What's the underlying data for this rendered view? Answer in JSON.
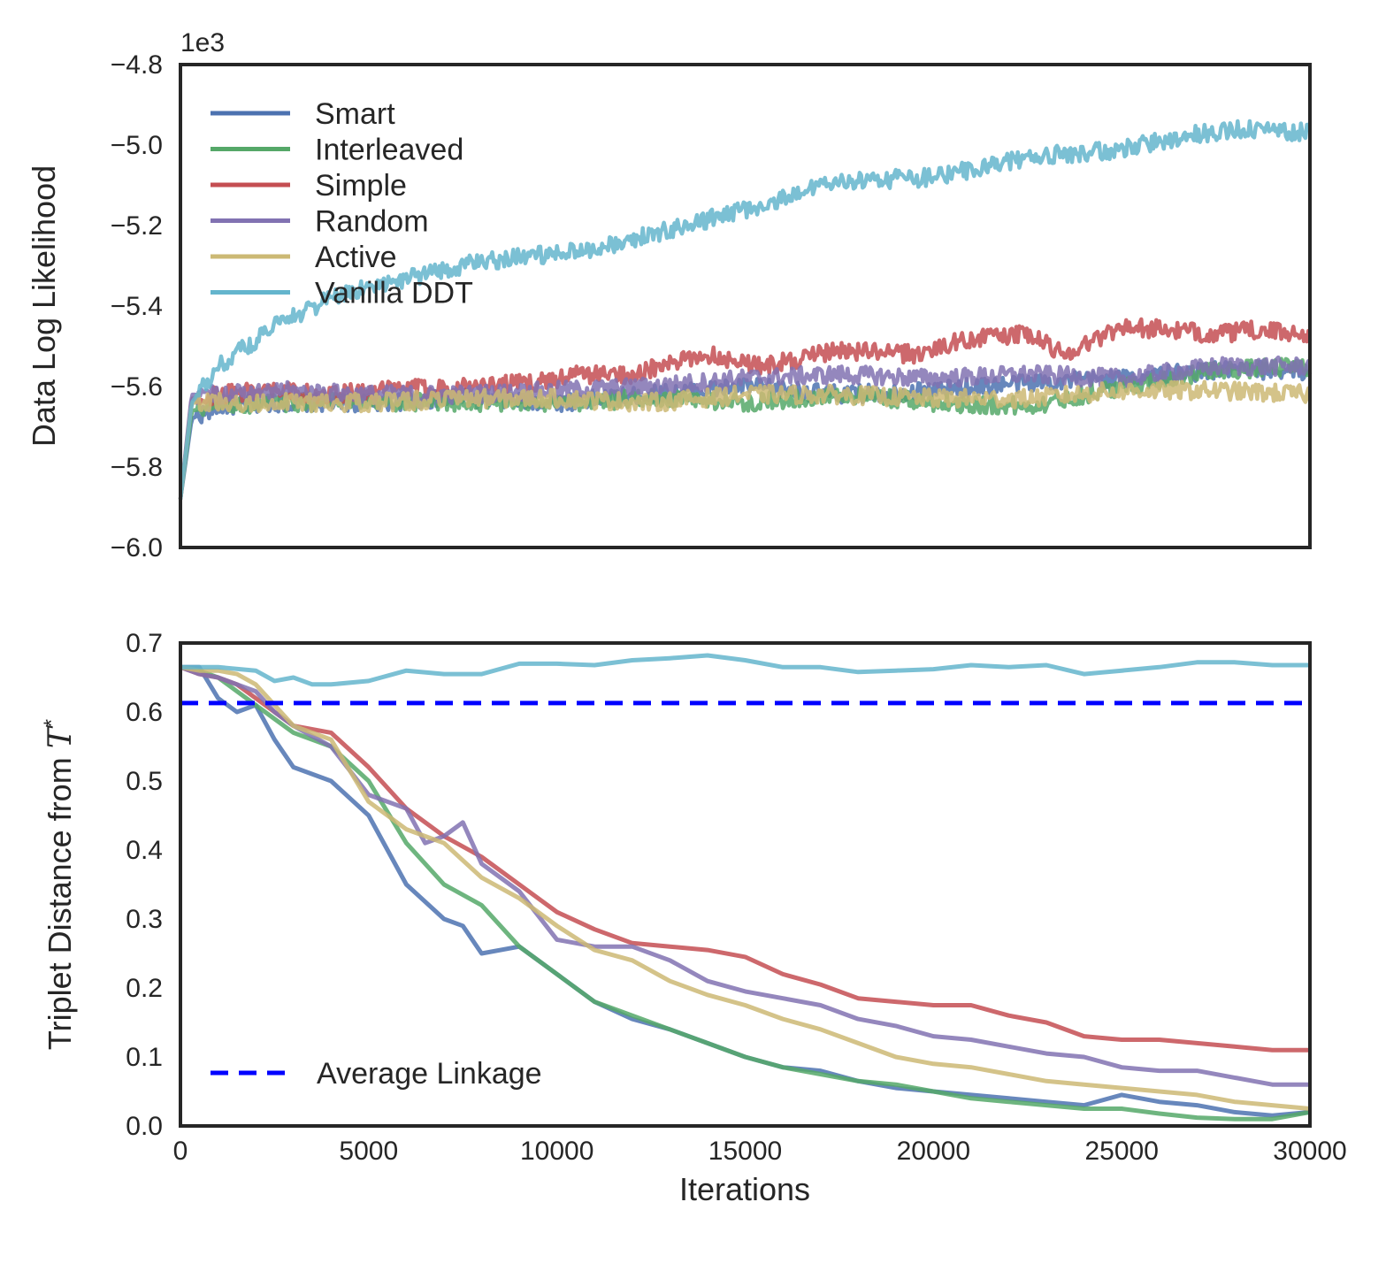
{
  "chart_data": [
    {
      "type": "line",
      "panel": "top",
      "ylabel": "Data Log Likelihood",
      "xlabel": "",
      "ylim": [
        -6.0,
        -4.8
      ],
      "xlim": [
        0,
        30000
      ],
      "y_scale_label": "1e3",
      "yticks": [
        -6.0,
        -5.8,
        -5.6,
        -5.4,
        -5.2,
        -5.0,
        -4.8
      ],
      "ytick_labels": [
        "−6.0",
        "−5.8",
        "−5.6",
        "−5.4",
        "−5.2",
        "−5.0",
        "−4.8"
      ],
      "legend_position": "upper-left",
      "grid": false,
      "series": [
        {
          "name": "Smart",
          "color": "#4c72b0",
          "x": [
            0,
            300,
            1000,
            2500,
            5000,
            7500,
            10000,
            12500,
            15000,
            17500,
            20000,
            22500,
            25000,
            27500,
            30000
          ],
          "y": [
            -5.88,
            -5.68,
            -5.65,
            -5.64,
            -5.64,
            -5.63,
            -5.64,
            -5.62,
            -5.6,
            -5.62,
            -5.61,
            -5.59,
            -5.58,
            -5.56,
            -5.56
          ]
        },
        {
          "name": "Interleaved",
          "color": "#55a868",
          "x": [
            0,
            300,
            1000,
            2500,
            5000,
            7500,
            10000,
            12500,
            15000,
            17500,
            20000,
            22500,
            25000,
            27500,
            30000
          ],
          "y": [
            -5.88,
            -5.66,
            -5.65,
            -5.64,
            -5.64,
            -5.64,
            -5.64,
            -5.63,
            -5.64,
            -5.62,
            -5.64,
            -5.65,
            -5.6,
            -5.56,
            -5.55
          ]
        },
        {
          "name": "Simple",
          "color": "#c44e52",
          "x": [
            0,
            300,
            1000,
            2500,
            4000,
            5000,
            7500,
            9500,
            10500,
            12000,
            14000,
            15500,
            17500,
            19500,
            21000,
            22500,
            23500,
            25000,
            27500,
            28500,
            30000
          ],
          "y": [
            -5.88,
            -5.63,
            -5.62,
            -5.61,
            -5.62,
            -5.61,
            -5.6,
            -5.59,
            -5.57,
            -5.57,
            -5.52,
            -5.55,
            -5.51,
            -5.52,
            -5.48,
            -5.47,
            -5.52,
            -5.45,
            -5.47,
            -5.46,
            -5.47
          ]
        },
        {
          "name": "Random",
          "color": "#8172b2",
          "x": [
            0,
            300,
            1000,
            2500,
            5000,
            7500,
            10000,
            12500,
            15000,
            17500,
            20000,
            22500,
            25000,
            27500,
            30000
          ],
          "y": [
            -5.88,
            -5.62,
            -5.62,
            -5.61,
            -5.62,
            -5.62,
            -5.61,
            -5.6,
            -5.58,
            -5.57,
            -5.58,
            -5.57,
            -5.58,
            -5.55,
            -5.55
          ]
        },
        {
          "name": "Active",
          "color": "#ccb974",
          "x": [
            0,
            300,
            1000,
            2500,
            5000,
            7500,
            10000,
            12500,
            15000,
            17500,
            20000,
            22500,
            25000,
            27500,
            30000
          ],
          "y": [
            -5.88,
            -5.64,
            -5.64,
            -5.64,
            -5.64,
            -5.63,
            -5.63,
            -5.64,
            -5.62,
            -5.62,
            -5.63,
            -5.63,
            -5.61,
            -5.61,
            -5.62
          ]
        },
        {
          "name": "Vanilla DDT",
          "color": "#64b5cd",
          "x": [
            0,
            300,
            1000,
            2500,
            4000,
            6000,
            8000,
            10000,
            11000,
            13000,
            15000,
            17500,
            20000,
            22500,
            25000,
            26500,
            28000,
            30000
          ],
          "y": [
            -5.88,
            -5.64,
            -5.55,
            -5.45,
            -5.38,
            -5.33,
            -5.29,
            -5.27,
            -5.26,
            -5.21,
            -5.16,
            -5.09,
            -5.08,
            -5.03,
            -5.01,
            -4.98,
            -4.96,
            -4.97
          ]
        }
      ]
    },
    {
      "type": "line",
      "panel": "bottom",
      "xlabel": "Iterations",
      "ylabel": "Triplet Distance from ",
      "ylabel_symbol": "T",
      "ylabel_superscript": "*",
      "xlim": [
        0,
        30000
      ],
      "ylim": [
        0.0,
        0.7
      ],
      "xticks": [
        0,
        5000,
        10000,
        15000,
        20000,
        25000,
        30000
      ],
      "xtick_labels": [
        "0",
        "5000",
        "10000",
        "15000",
        "20000",
        "25000",
        "30000"
      ],
      "yticks": [
        0.0,
        0.1,
        0.2,
        0.3,
        0.4,
        0.5,
        0.6,
        0.7
      ],
      "ytick_labels": [
        "0.0",
        "0.1",
        "0.2",
        "0.3",
        "0.4",
        "0.5",
        "0.6",
        "0.7"
      ],
      "legend_position": "lower-left",
      "grid": false,
      "reference_line": {
        "name": "Average Linkage",
        "value": 0.613,
        "color": "#0000ff",
        "style": "dashed"
      },
      "series": [
        {
          "name": "Smart",
          "color": "#4c72b0",
          "x": [
            0,
            500,
            1000,
            1500,
            2000,
            2500,
            3000,
            4000,
            5000,
            6000,
            7000,
            7500,
            8000,
            9000,
            10000,
            11000,
            12000,
            13000,
            14000,
            15000,
            16000,
            17000,
            18000,
            19000,
            20000,
            21000,
            22000,
            23000,
            24000,
            25000,
            26000,
            27000,
            28000,
            29000,
            30000
          ],
          "y": [
            0.665,
            0.665,
            0.62,
            0.6,
            0.61,
            0.56,
            0.52,
            0.5,
            0.45,
            0.35,
            0.3,
            0.29,
            0.25,
            0.26,
            0.22,
            0.18,
            0.155,
            0.14,
            0.12,
            0.1,
            0.085,
            0.08,
            0.065,
            0.055,
            0.05,
            0.045,
            0.04,
            0.035,
            0.03,
            0.045,
            0.035,
            0.03,
            0.02,
            0.015,
            0.02
          ]
        },
        {
          "name": "Interleaved",
          "color": "#55a868",
          "x": [
            0,
            500,
            1000,
            1500,
            2000,
            2500,
            3000,
            4000,
            5000,
            6000,
            7000,
            8000,
            9000,
            10000,
            11000,
            12000,
            13000,
            14000,
            15000,
            16000,
            17000,
            18000,
            19000,
            20000,
            21000,
            22000,
            23000,
            24000,
            25000,
            26000,
            27000,
            28000,
            29000,
            30000
          ],
          "y": [
            0.665,
            0.66,
            0.65,
            0.63,
            0.61,
            0.59,
            0.57,
            0.55,
            0.5,
            0.41,
            0.35,
            0.32,
            0.26,
            0.22,
            0.18,
            0.16,
            0.14,
            0.12,
            0.1,
            0.085,
            0.075,
            0.065,
            0.06,
            0.05,
            0.04,
            0.035,
            0.03,
            0.025,
            0.025,
            0.018,
            0.012,
            0.01,
            0.01,
            0.02
          ]
        },
        {
          "name": "Simple",
          "color": "#c44e52",
          "x": [
            0,
            500,
            1000,
            1500,
            2000,
            2500,
            3000,
            4000,
            5000,
            6000,
            7000,
            8000,
            9000,
            10000,
            11000,
            12000,
            13000,
            14000,
            15000,
            16000,
            17000,
            18000,
            19000,
            20000,
            21000,
            22000,
            23000,
            24000,
            25000,
            26000,
            27000,
            28000,
            29000,
            30000
          ],
          "y": [
            0.665,
            0.655,
            0.65,
            0.64,
            0.62,
            0.6,
            0.58,
            0.57,
            0.52,
            0.46,
            0.42,
            0.39,
            0.35,
            0.31,
            0.285,
            0.265,
            0.26,
            0.255,
            0.245,
            0.22,
            0.205,
            0.185,
            0.18,
            0.175,
            0.175,
            0.16,
            0.15,
            0.13,
            0.125,
            0.125,
            0.12,
            0.115,
            0.11,
            0.11
          ]
        },
        {
          "name": "Random",
          "color": "#8172b2",
          "x": [
            0,
            500,
            1000,
            1500,
            2000,
            2500,
            3000,
            4000,
            5000,
            6000,
            6500,
            7000,
            7500,
            8000,
            9000,
            10000,
            11000,
            12000,
            13000,
            14000,
            15000,
            16000,
            17000,
            18000,
            19000,
            20000,
            21000,
            22000,
            23000,
            24000,
            25000,
            26000,
            27000,
            28000,
            29000,
            30000
          ],
          "y": [
            0.665,
            0.655,
            0.65,
            0.64,
            0.63,
            0.6,
            0.58,
            0.55,
            0.48,
            0.46,
            0.41,
            0.42,
            0.44,
            0.38,
            0.34,
            0.27,
            0.26,
            0.26,
            0.24,
            0.21,
            0.195,
            0.185,
            0.175,
            0.155,
            0.145,
            0.13,
            0.125,
            0.115,
            0.105,
            0.1,
            0.085,
            0.08,
            0.08,
            0.07,
            0.06,
            0.06
          ]
        },
        {
          "name": "Active",
          "color": "#ccb974",
          "x": [
            0,
            500,
            1000,
            1500,
            2000,
            2500,
            3000,
            4000,
            5000,
            6000,
            7000,
            8000,
            9000,
            10000,
            11000,
            12000,
            13000,
            14000,
            15000,
            16000,
            17000,
            18000,
            19000,
            20000,
            21000,
            22000,
            23000,
            24000,
            25000,
            26000,
            27000,
            28000,
            29000,
            30000
          ],
          "y": [
            0.665,
            0.66,
            0.66,
            0.655,
            0.64,
            0.61,
            0.58,
            0.56,
            0.47,
            0.43,
            0.41,
            0.36,
            0.33,
            0.29,
            0.255,
            0.24,
            0.21,
            0.19,
            0.175,
            0.155,
            0.14,
            0.12,
            0.1,
            0.09,
            0.085,
            0.075,
            0.065,
            0.06,
            0.055,
            0.05,
            0.045,
            0.035,
            0.03,
            0.025
          ]
        },
        {
          "name": "Vanilla DDT",
          "color": "#64b5cd",
          "x": [
            0,
            1000,
            2000,
            2500,
            3000,
            3500,
            4000,
            5000,
            6000,
            7000,
            8000,
            9000,
            10000,
            11000,
            12000,
            13000,
            14000,
            15000,
            16000,
            17000,
            18000,
            19000,
            20000,
            21000,
            22000,
            23000,
            24000,
            25000,
            26000,
            27000,
            28000,
            29000,
            30000
          ],
          "y": [
            0.665,
            0.665,
            0.66,
            0.645,
            0.65,
            0.64,
            0.64,
            0.645,
            0.66,
            0.655,
            0.655,
            0.67,
            0.67,
            0.668,
            0.675,
            0.678,
            0.682,
            0.675,
            0.665,
            0.665,
            0.658,
            0.66,
            0.662,
            0.668,
            0.665,
            0.668,
            0.655,
            0.66,
            0.665,
            0.672,
            0.672,
            0.668,
            0.668
          ]
        }
      ]
    }
  ]
}
